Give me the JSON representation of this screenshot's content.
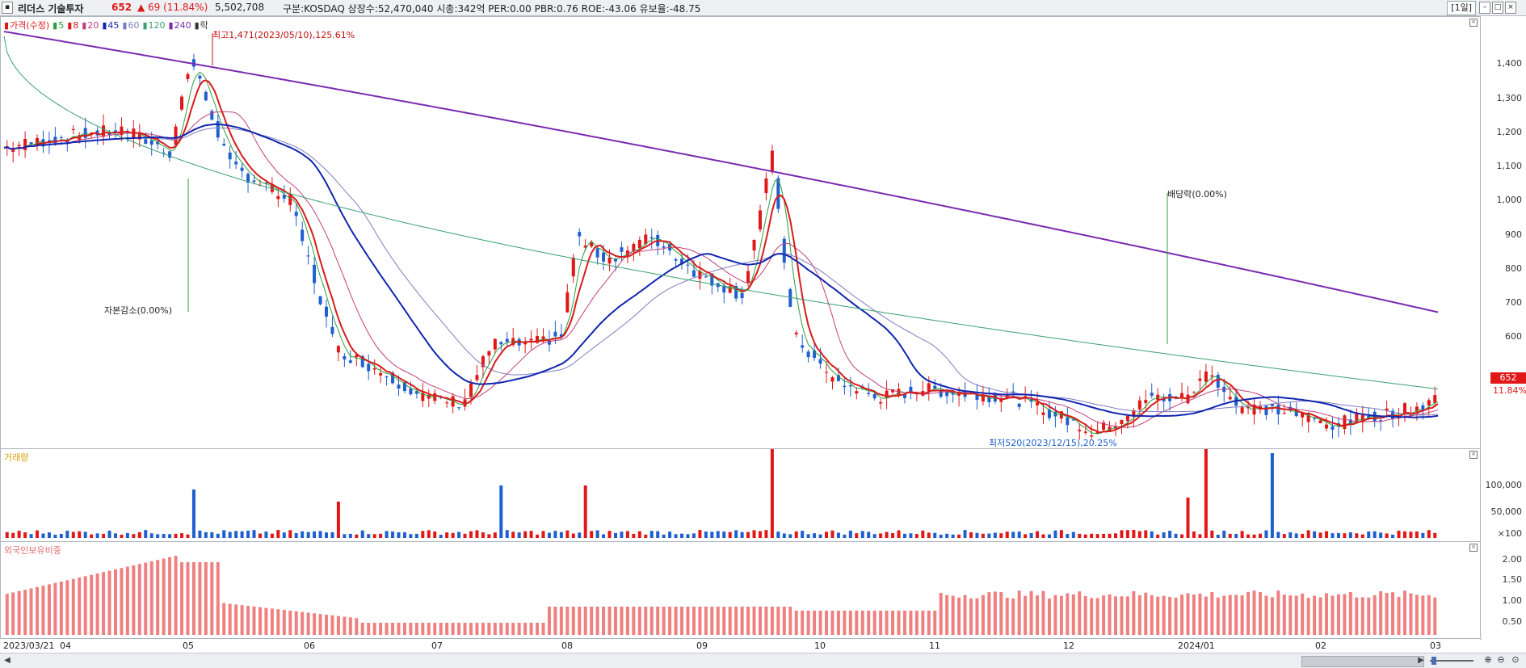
{
  "header": {
    "name": "리더스 기술투자",
    "price": "652",
    "change": "▲ 69 (11.84%)",
    "volume": "5,502,708",
    "info": "구분:KOSDAQ 상장수:52,470,040 시총:342억 PER:0.00 PBR:0.76 ROE:-43.06 유보율:-48.75",
    "timeframe": "[1일]"
  },
  "colors": {
    "up": "#e01818",
    "down": "#1f5fcf",
    "ma5": "#2e9e3e",
    "ma8": "#d61c1c",
    "ma20": "#c0407a",
    "ma45": "#1025b0",
    "ma60": "#7d7dc0",
    "ma120": "#3aa070",
    "ma240": "#7a2ab0",
    "foreign": "#f08080"
  },
  "legend": [
    {
      "label": "가격(수정)",
      "color": "#e01818"
    },
    {
      "label": "5",
      "color": "#2e9e3e"
    },
    {
      "label": "8",
      "color": "#d61c1c"
    },
    {
      "label": "20",
      "color": "#c0407a"
    },
    {
      "label": "45",
      "color": "#1025b0"
    },
    {
      "label": "60",
      "color": "#7d7dc0"
    },
    {
      "label": "120",
      "color": "#3aa070"
    },
    {
      "label": "240",
      "color": "#7a2ab0"
    },
    {
      "label": "락",
      "color": "#333333"
    }
  ],
  "annotations": {
    "high": "최고1,471(2023/05/10),125.61%",
    "low": "최저520(2023/12/15),20.25%",
    "capital_reduction": "자본감소(0.00%)",
    "dividend": "배당락(0.00%)"
  },
  "price_axis": [
    "1,400",
    "1,300",
    "1,200",
    "1,100",
    "1,000",
    "900",
    "800",
    "700",
    "600"
  ],
  "current_price_tag": "652",
  "current_change_tag": "11.84%",
  "volume_pane": {
    "title": "거래량",
    "axis": [
      "100,000",
      "50,000",
      "×100"
    ]
  },
  "foreign_pane": {
    "title": "외국인보유비중",
    "axis": [
      "2.00",
      "1.50",
      "1.00",
      "0.50"
    ]
  },
  "x_labels": [
    "2023/03/21",
    "04",
    "05",
    "06",
    "07",
    "08",
    "09",
    "10",
    "11",
    "12",
    "2024/01",
    "02",
    "03"
  ],
  "chart_data": {
    "type": "candlestick",
    "x_start": "2023/03/21",
    "x_end": "2024/03",
    "price_ylim": [
      540,
      1480
    ],
    "ma240_start": 1460,
    "ma240_end": 832,
    "ma120_start": 1450,
    "ma120_end": 660,
    "high": 1471,
    "low": 520,
    "last": 652,
    "volume_peaks": [
      {
        "near": "2023/09 end",
        "value": 140000
      },
      {
        "near": "2023/12",
        "value": 135000
      },
      {
        "near": "2024/01",
        "value": 120000
      }
    ],
    "foreign_ratio_range": [
      0.3,
      2.1
    ]
  }
}
